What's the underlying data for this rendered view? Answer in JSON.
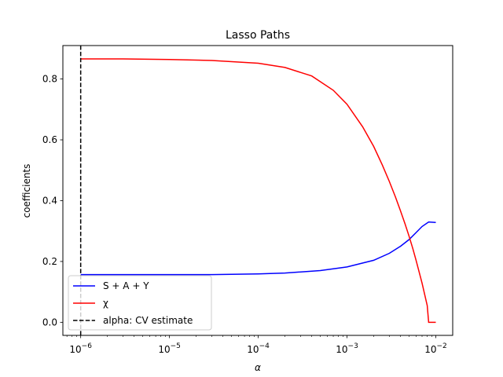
{
  "chart_data": {
    "type": "line",
    "title": "Lasso Paths",
    "xlabel": "α",
    "ylabel": "coefficients",
    "xscale": "log",
    "xlim": [
      6.3e-07,
      0.0155
    ],
    "ylim": [
      -0.043,
      0.91
    ],
    "grid": false,
    "legend_position": "lower-left",
    "x_ticks": [
      {
        "value": 1e-06,
        "base": "10",
        "exp": "−6"
      },
      {
        "value": 1e-05,
        "base": "10",
        "exp": "−5"
      },
      {
        "value": 0.0001,
        "base": "10",
        "exp": "−4"
      },
      {
        "value": 0.001,
        "base": "10",
        "exp": "−3"
      },
      {
        "value": 0.01,
        "base": "10",
        "exp": "−2"
      }
    ],
    "y_ticks": [
      {
        "value": 0.0,
        "label": "0.0"
      },
      {
        "value": 0.2,
        "label": "0.2"
      },
      {
        "value": 0.4,
        "label": "0.4"
      },
      {
        "value": 0.6,
        "label": "0.6"
      },
      {
        "value": 0.8,
        "label": "0.8"
      }
    ],
    "series": [
      {
        "name": "S + A + Y",
        "color": "#0000ff",
        "style": "solid",
        "x": [
          1e-06,
          3e-06,
          1e-05,
          3e-05,
          0.0001,
          0.0002,
          0.0005,
          0.001,
          0.002,
          0.003,
          0.004,
          0.005,
          0.006,
          0.007,
          0.0083,
          0.01
        ],
        "y": [
          0.157,
          0.157,
          0.157,
          0.157,
          0.159,
          0.162,
          0.17,
          0.182,
          0.204,
          0.227,
          0.25,
          0.272,
          0.295,
          0.315,
          0.33,
          0.328
        ]
      },
      {
        "name": "χ",
        "color": "#ff0000",
        "style": "solid",
        "x": [
          1e-06,
          3e-06,
          1e-05,
          3e-05,
          0.0001,
          0.0002,
          0.0004,
          0.0007,
          0.001,
          0.0015,
          0.002,
          0.0025,
          0.003,
          0.0035,
          0.004,
          0.0045,
          0.005,
          0.0055,
          0.006,
          0.007,
          0.008,
          0.0083,
          0.01
        ],
        "y": [
          0.866,
          0.866,
          0.864,
          0.861,
          0.852,
          0.838,
          0.81,
          0.763,
          0.717,
          0.643,
          0.578,
          0.517,
          0.463,
          0.413,
          0.367,
          0.324,
          0.283,
          0.243,
          0.204,
          0.129,
          0.055,
          0.0,
          0.0
        ]
      }
    ],
    "vline": {
      "name": "alpha: CV estimate",
      "color": "#000000",
      "style": "dashed",
      "x": 1e-06
    }
  }
}
